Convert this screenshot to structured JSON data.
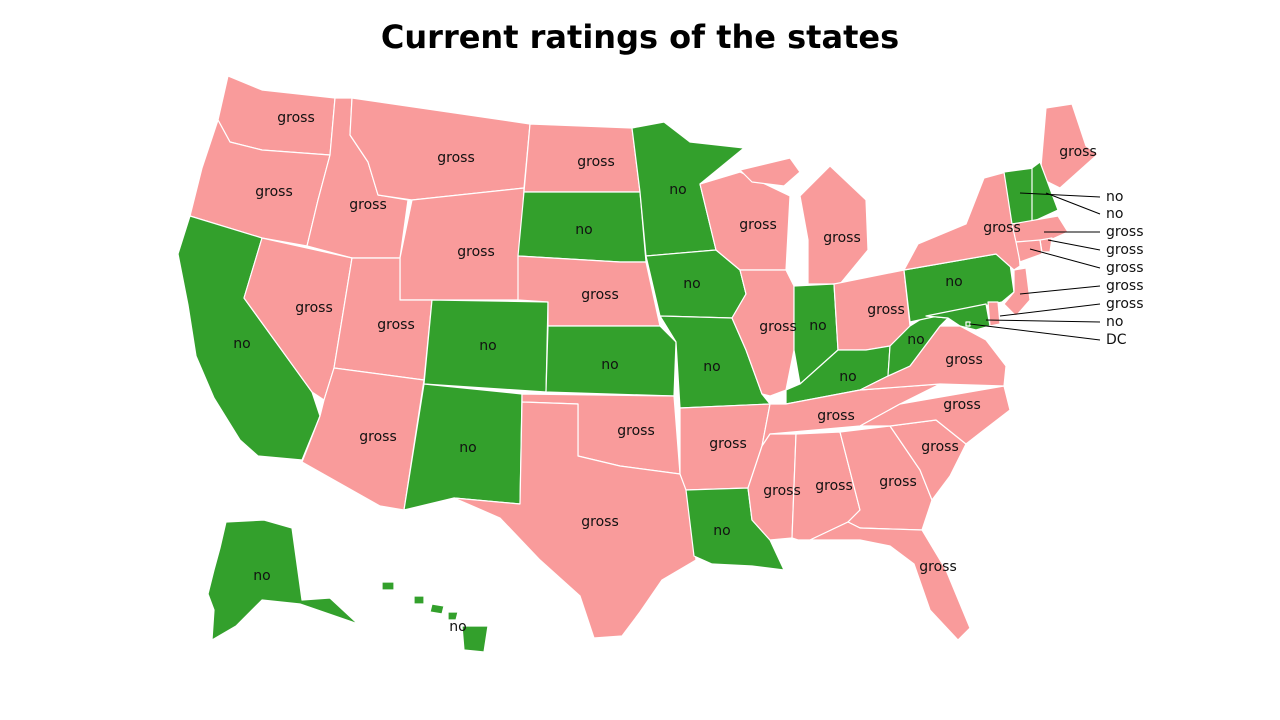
{
  "title": "Current ratings of the states",
  "legend_colors": {
    "gross": "#f99b9b",
    "no": "#33a02c"
  },
  "states": [
    {
      "id": "WA",
      "rating": "gross"
    },
    {
      "id": "OR",
      "rating": "gross"
    },
    {
      "id": "CA",
      "rating": "no"
    },
    {
      "id": "ID",
      "rating": "gross"
    },
    {
      "id": "NV",
      "rating": "gross"
    },
    {
      "id": "MT",
      "rating": "gross"
    },
    {
      "id": "WY",
      "rating": "gross"
    },
    {
      "id": "UT",
      "rating": "gross"
    },
    {
      "id": "AZ",
      "rating": "gross"
    },
    {
      "id": "CO",
      "rating": "no"
    },
    {
      "id": "NM",
      "rating": "no"
    },
    {
      "id": "ND",
      "rating": "gross"
    },
    {
      "id": "SD",
      "rating": "no"
    },
    {
      "id": "NE",
      "rating": "gross"
    },
    {
      "id": "KS",
      "rating": "no"
    },
    {
      "id": "OK",
      "rating": "gross"
    },
    {
      "id": "TX",
      "rating": "gross"
    },
    {
      "id": "MN",
      "rating": "no"
    },
    {
      "id": "IA",
      "rating": "no"
    },
    {
      "id": "MO",
      "rating": "no"
    },
    {
      "id": "AR",
      "rating": "gross"
    },
    {
      "id": "LA",
      "rating": "no"
    },
    {
      "id": "WI",
      "rating": "gross"
    },
    {
      "id": "IL",
      "rating": "gross"
    },
    {
      "id": "MI",
      "rating": "gross"
    },
    {
      "id": "IN",
      "rating": "no"
    },
    {
      "id": "OH",
      "rating": "gross"
    },
    {
      "id": "KY",
      "rating": "no"
    },
    {
      "id": "TN",
      "rating": "gross"
    },
    {
      "id": "MS",
      "rating": "gross"
    },
    {
      "id": "AL",
      "rating": "gross"
    },
    {
      "id": "GA",
      "rating": "gross"
    },
    {
      "id": "FL",
      "rating": "gross"
    },
    {
      "id": "SC",
      "rating": "gross"
    },
    {
      "id": "NC",
      "rating": "gross"
    },
    {
      "id": "VA",
      "rating": "gross"
    },
    {
      "id": "WV",
      "rating": "no"
    },
    {
      "id": "PA",
      "rating": "no"
    },
    {
      "id": "NY",
      "rating": "gross"
    },
    {
      "id": "ME",
      "rating": "gross"
    },
    {
      "id": "AK",
      "rating": "no"
    },
    {
      "id": "HI",
      "rating": "no"
    },
    {
      "id": "VT",
      "rating": "no"
    },
    {
      "id": "NH",
      "rating": "no"
    },
    {
      "id": "MA",
      "rating": "gross"
    },
    {
      "id": "RI",
      "rating": "gross"
    },
    {
      "id": "CT",
      "rating": "gross"
    },
    {
      "id": "NJ",
      "rating": "gross"
    },
    {
      "id": "DE",
      "rating": "gross"
    },
    {
      "id": "MD",
      "rating": "no"
    },
    {
      "id": "DC",
      "rating": "DC"
    }
  ]
}
